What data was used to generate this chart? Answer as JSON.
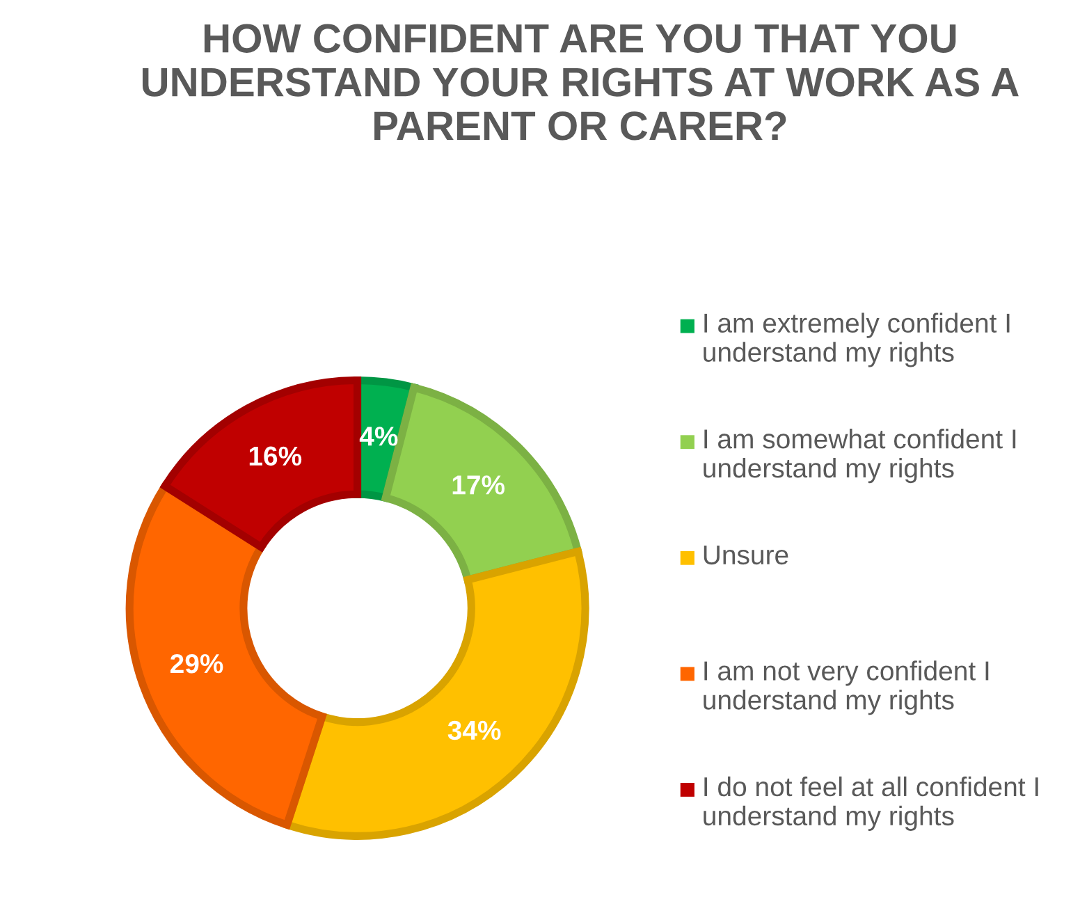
{
  "chart_data": {
    "type": "donut",
    "title": "HOW CONFIDENT ARE YOU THAT YOU UNDERSTAND YOUR RIGHTS AT WORK AS A PARENT OR CARER?",
    "categories": [
      "I am extremely confident I understand my rights",
      "I am somewhat confident I understand my rights",
      "Unsure",
      "I am not very confident I understand my rights",
      "I do not feel at all confident I understand my rights"
    ],
    "values": [
      4,
      17,
      34,
      29,
      16
    ],
    "colors": [
      "#00b050",
      "#92d050",
      "#ffc000",
      "#ff6600",
      "#c00000"
    ],
    "value_labels": [
      "4%",
      "17%",
      "34%",
      "29%",
      "16%"
    ],
    "legend": "right"
  }
}
